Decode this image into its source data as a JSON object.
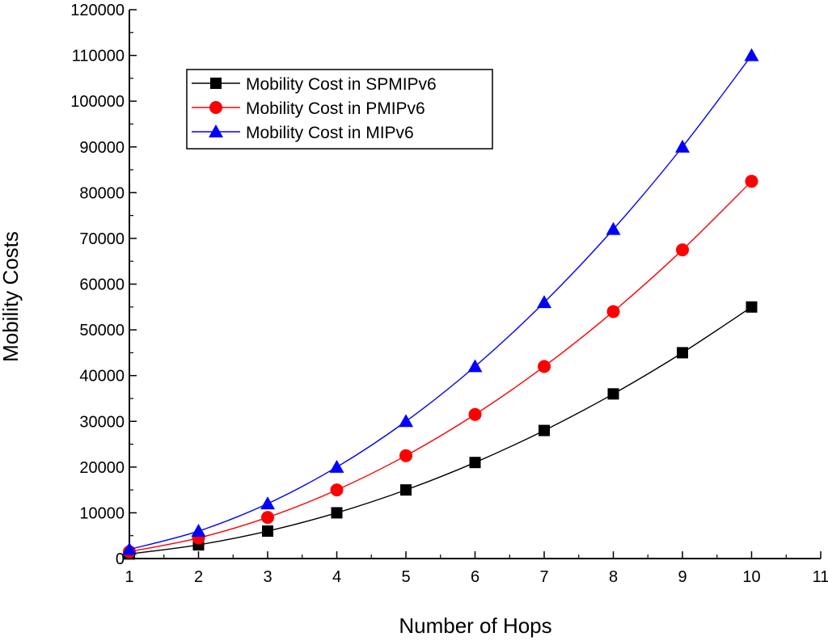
{
  "chart_data": {
    "type": "line",
    "title": "",
    "xlabel": "Number of Hops",
    "ylabel": "Mobility Costs",
    "xlim": [
      1,
      11
    ],
    "ylim": [
      0,
      120000
    ],
    "x_ticks": [
      1,
      2,
      3,
      4,
      5,
      6,
      7,
      8,
      9,
      10,
      11
    ],
    "y_ticks": [
      0,
      10000,
      20000,
      30000,
      40000,
      50000,
      60000,
      70000,
      80000,
      90000,
      100000,
      110000,
      120000
    ],
    "x": [
      1,
      2,
      3,
      4,
      5,
      6,
      7,
      8,
      9,
      10
    ],
    "legend_position": "top-left",
    "series": [
      {
        "name": "Mobility Cost in SPMIPv6",
        "color": "#000000",
        "marker": "square",
        "values": [
          1000,
          3000,
          6000,
          10000,
          15000,
          21000,
          28000,
          36000,
          45000,
          55000
        ]
      },
      {
        "name": "Mobility Cost in PMIPv6",
        "color": "#ff0000",
        "marker": "circle",
        "values": [
          1500,
          4500,
          9000,
          15000,
          22500,
          31500,
          42000,
          54000,
          67500,
          82500
        ]
      },
      {
        "name": "Mobility Cost in MIPv6",
        "color": "#0000ff",
        "marker": "triangle",
        "values": [
          2000,
          6000,
          12000,
          20000,
          30000,
          42000,
          56000,
          72000,
          90000,
          110000
        ]
      }
    ]
  }
}
